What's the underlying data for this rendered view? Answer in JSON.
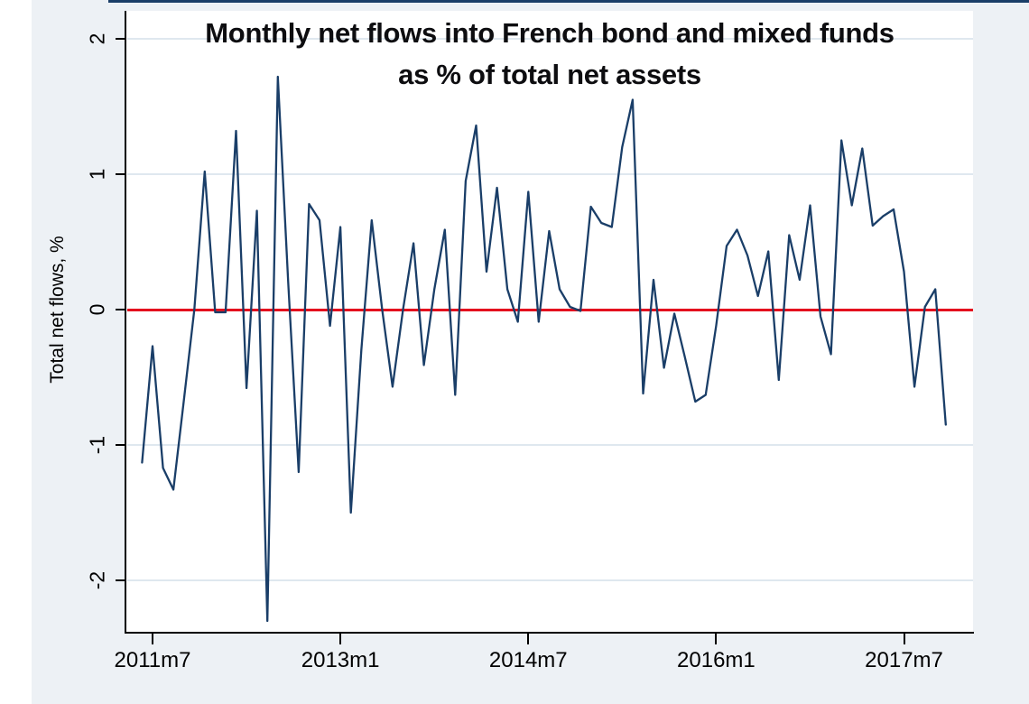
{
  "figure": {
    "title_line1": "Monthly net flows into French bond and mixed funds",
    "title_line2": "as % of total net assets",
    "y_axis_title": "Total net flows, %",
    "colors": {
      "figure_background": "#edf1f5",
      "plot_background": "#ffffff",
      "series_line": "#1a3e68",
      "zero_reference_line": "#e4101e",
      "gridline": "#dfe8ef",
      "axis": "#000000",
      "title_text": "#0d0d10",
      "top_border": "#1a3e68"
    }
  },
  "chart_data": {
    "type": "line",
    "title": "Monthly net flows into French bond and mixed funds as % of total net assets",
    "xlabel": "",
    "ylabel": "Total net flows, %",
    "legend": "none",
    "grid": "horizontal",
    "ylim": [
      -2.45,
      2.2
    ],
    "y_tick_labels": [
      "2",
      "1",
      "0",
      "-1",
      "-2"
    ],
    "y_tick_values": [
      2,
      1,
      0,
      -1,
      -2
    ],
    "x_tick_labels": [
      "2011m7",
      "2013m1",
      "2014m7",
      "2016m1",
      "2017m7"
    ],
    "reference_line": {
      "y": 0,
      "color": "#e4101e"
    },
    "series": [
      {
        "name": "Total net flows, % of total net assets",
        "color": "#1a3e68",
        "x": [
          "2011m6",
          "2011m7",
          "2011m8",
          "2011m9",
          "2011m10",
          "2011m11",
          "2011m12",
          "2012m1",
          "2012m2",
          "2012m3",
          "2012m4",
          "2012m5",
          "2012m6",
          "2012m7",
          "2012m8",
          "2012m9",
          "2012m10",
          "2012m11",
          "2012m12",
          "2013m1",
          "2013m2",
          "2013m3",
          "2013m4",
          "2013m5",
          "2013m6",
          "2013m7",
          "2013m8",
          "2013m9",
          "2013m10",
          "2013m11",
          "2013m12",
          "2014m1",
          "2014m2",
          "2014m3",
          "2014m4",
          "2014m5",
          "2014m6",
          "2014m7",
          "2014m8",
          "2014m9",
          "2014m10",
          "2014m11",
          "2014m12",
          "2015m1",
          "2015m2",
          "2015m3",
          "2015m4",
          "2015m5",
          "2015m6",
          "2015m7",
          "2015m8",
          "2015m9",
          "2015m10",
          "2015m11",
          "2015m12",
          "2016m1",
          "2016m2",
          "2016m3",
          "2016m4",
          "2016m5",
          "2016m6",
          "2016m7",
          "2016m8",
          "2016m9",
          "2016m10",
          "2016m11",
          "2016m12",
          "2017m1",
          "2017m2",
          "2017m3",
          "2017m4",
          "2017m5",
          "2017m6",
          "2017m7",
          "2017m8",
          "2017m9",
          "2017m10",
          "2017m11"
        ],
        "values": [
          -1.13,
          -0.27,
          -1.17,
          -1.33,
          -0.67,
          0.0,
          1.02,
          -0.02,
          -0.02,
          1.32,
          -0.58,
          0.73,
          -2.3,
          1.72,
          0.2,
          -1.2,
          0.78,
          0.66,
          -0.12,
          0.61,
          -1.5,
          -0.3,
          0.66,
          0.0,
          -0.57,
          0.0,
          0.49,
          -0.41,
          0.15,
          0.59,
          -0.63,
          0.95,
          1.36,
          0.28,
          0.9,
          0.15,
          -0.09,
          0.87,
          -0.09,
          0.58,
          0.15,
          0.02,
          -0.01,
          0.76,
          0.64,
          0.61,
          1.2,
          1.55,
          -0.62,
          0.22,
          -0.43,
          -0.03,
          -0.35,
          -0.68,
          -0.63,
          -0.12,
          0.47,
          0.59,
          0.4,
          0.1,
          0.43,
          -0.52,
          0.55,
          0.22,
          0.77,
          -0.05,
          -0.33,
          1.25,
          0.77,
          1.19,
          0.62,
          0.69,
          0.74,
          0.28,
          -0.57,
          0.02,
          0.15,
          -0.85
        ]
      }
    ]
  }
}
